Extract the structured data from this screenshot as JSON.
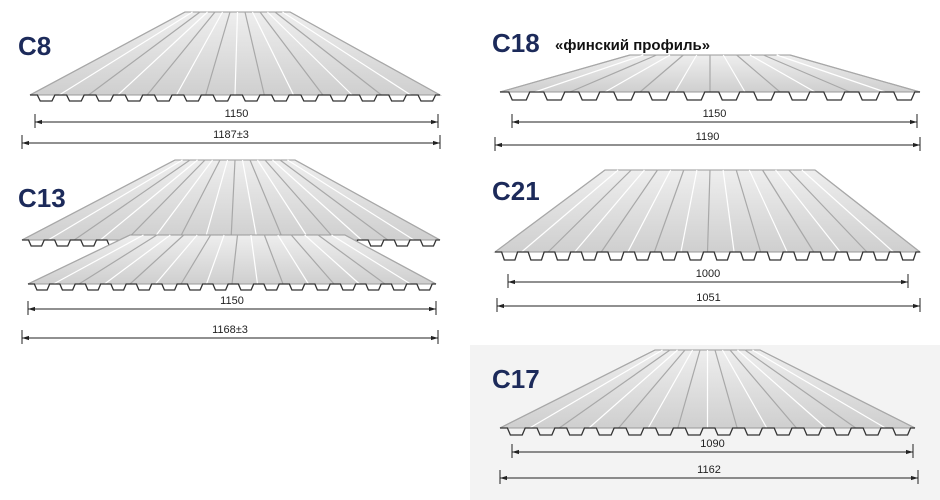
{
  "profiles": [
    {
      "name": "С8",
      "dims": [
        "1150",
        "1187±3"
      ]
    },
    {
      "name": "С13",
      "dims": [
        "1150",
        "1168±3"
      ]
    },
    {
      "name": "С18",
      "subtitle": "«финский профиль»",
      "dims": [
        "1150",
        "1190"
      ]
    },
    {
      "name": "С21",
      "dims": [
        "1000",
        "1051"
      ]
    },
    {
      "name": "С17",
      "dims": [
        "1090",
        "1162"
      ]
    }
  ]
}
